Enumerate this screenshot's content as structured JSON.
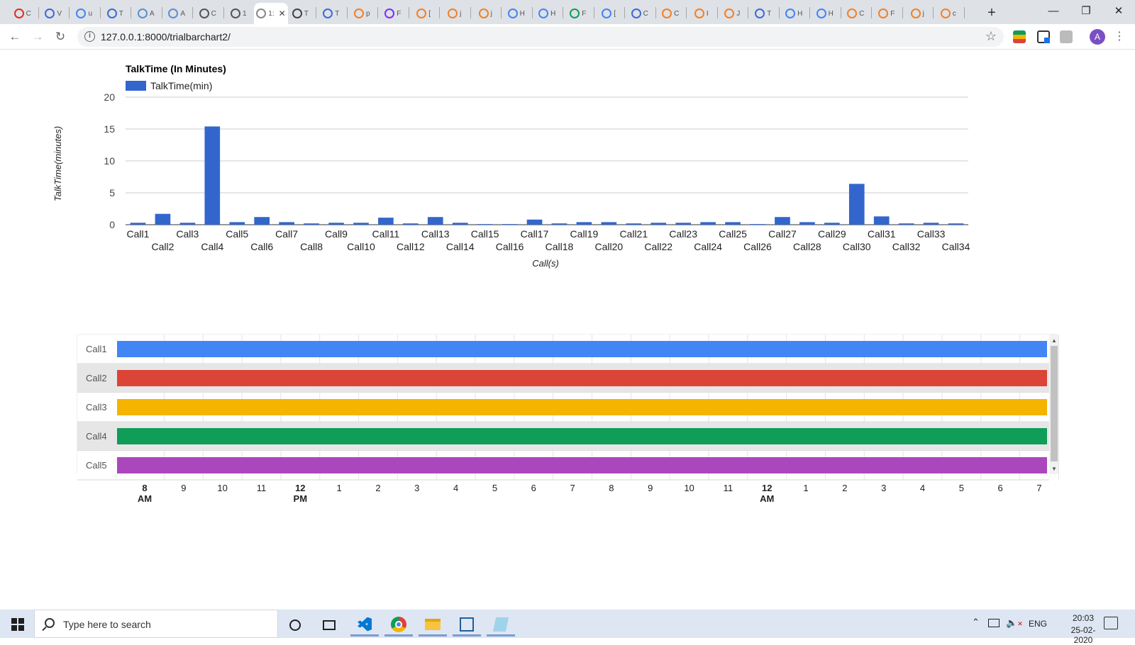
{
  "browser": {
    "tabs": [
      {
        "icon": "gmail-icon",
        "label": "C",
        "color": "#d93025"
      },
      {
        "icon": "code-icon",
        "label": "V",
        "color": "#3b6bd6"
      },
      {
        "icon": "google-icon",
        "label": "u",
        "color": "#4285f4"
      },
      {
        "icon": "code-icon",
        "label": "T",
        "color": "#3b6bd6"
      },
      {
        "icon": "cloud-icon",
        "label": "A",
        "color": "#5a8fd6"
      },
      {
        "icon": "cloud-icon",
        "label": "A",
        "color": "#5a8fd6"
      },
      {
        "icon": "globe-icon",
        "label": "C",
        "color": "#555555"
      },
      {
        "icon": "globe-icon",
        "label": "1",
        "color": "#555555"
      },
      {
        "icon": "page-icon",
        "label": "1:",
        "color": "#888888",
        "active": true
      },
      {
        "icon": "owl-icon",
        "label": "T",
        "color": "#444444"
      },
      {
        "icon": "code-icon",
        "label": "T",
        "color": "#3b6bd6"
      },
      {
        "icon": "stackoverflow-icon",
        "label": "p",
        "color": "#f48024"
      },
      {
        "icon": "flag-icon",
        "label": "F",
        "color": "#7b2ff7"
      },
      {
        "icon": "stackoverflow-icon",
        "label": "[",
        "color": "#f48024"
      },
      {
        "icon": "stackoverflow-icon",
        "label": "j",
        "color": "#f48024"
      },
      {
        "icon": "stackoverflow-icon",
        "label": "j",
        "color": "#f48024"
      },
      {
        "icon": "google-icon",
        "label": "H",
        "color": "#4285f4"
      },
      {
        "icon": "google-icon",
        "label": "H",
        "color": "#4285f4"
      },
      {
        "icon": "gg-icon",
        "label": "F",
        "color": "#0f9d58"
      },
      {
        "icon": "google-icon",
        "label": "[",
        "color": "#4285f4"
      },
      {
        "icon": "code-icon",
        "label": "C",
        "color": "#3b6bd6"
      },
      {
        "icon": "stackoverflow-icon",
        "label": "C",
        "color": "#f48024"
      },
      {
        "icon": "stackoverflow-icon",
        "label": "I",
        "color": "#f48024"
      },
      {
        "icon": "stackoverflow-icon",
        "label": "J",
        "color": "#f48024"
      },
      {
        "icon": "code-icon",
        "label": "T",
        "color": "#3b6bd6"
      },
      {
        "icon": "google-icon",
        "label": "H",
        "color": "#4285f4"
      },
      {
        "icon": "google-icon",
        "label": "H",
        "color": "#4285f4"
      },
      {
        "icon": "stackoverflow-icon",
        "label": "C",
        "color": "#f48024"
      },
      {
        "icon": "stackoverflow-icon",
        "label": "F",
        "color": "#f48024"
      },
      {
        "icon": "stackoverflow-icon",
        "label": "j",
        "color": "#f48024"
      },
      {
        "icon": "stackoverflow-icon",
        "label": "c",
        "color": "#f48024"
      }
    ],
    "new_tab_label": "+",
    "url": "127.0.0.1:8000/trialbarchart2/",
    "avatar_letter": "A"
  },
  "chart_data": [
    {
      "type": "bar",
      "title": "TalkTime (In Minutes)",
      "xlabel": "Call(s)",
      "ylabel": "TalkTime(minutes)",
      "ylim": [
        0,
        20
      ],
      "yticks": [
        0,
        5,
        10,
        15,
        20
      ],
      "legend_position": "top-left",
      "grid": true,
      "categories": [
        "Call1",
        "Call2",
        "Call3",
        "Call4",
        "Call5",
        "Call6",
        "Call7",
        "Call8",
        "Call9",
        "Call10",
        "Call11",
        "Call12",
        "Call13",
        "Call14",
        "Call15",
        "Call16",
        "Call17",
        "Call18",
        "Call19",
        "Call20",
        "Call21",
        "Call22",
        "Call23",
        "Call24",
        "Call25",
        "Call26",
        "Call27",
        "Call28",
        "Call29",
        "Call30",
        "Call31",
        "Call32",
        "Call33",
        "Call34"
      ],
      "series": [
        {
          "name": "TalkTime(min)",
          "color": "#3366cc",
          "values": [
            0.3,
            1.7,
            0.3,
            15.4,
            0.4,
            1.2,
            0.4,
            0.2,
            0.3,
            0.3,
            1.1,
            0.2,
            1.2,
            0.3,
            0.1,
            0.1,
            0.8,
            0.2,
            0.4,
            0.4,
            0.2,
            0.3,
            0.3,
            0.4,
            0.4,
            0.1,
            1.2,
            0.4,
            0.3,
            6.4,
            1.3,
            0.2,
            0.3,
            0.2
          ]
        }
      ]
    },
    {
      "type": "timeline",
      "rows": [
        {
          "label": "Call1",
          "color": "#4285f4"
        },
        {
          "label": "Call2",
          "color": "#db4437"
        },
        {
          "label": "Call3",
          "color": "#f4b400"
        },
        {
          "label": "Call4",
          "color": "#0f9d58"
        },
        {
          "label": "Call5",
          "color": "#ab47bc"
        }
      ],
      "xticks": [
        {
          "label": "8",
          "sub": "AM"
        },
        {
          "label": "9"
        },
        {
          "label": "10"
        },
        {
          "label": "11"
        },
        {
          "label": "12",
          "sub": "PM"
        },
        {
          "label": "1"
        },
        {
          "label": "2"
        },
        {
          "label": "3"
        },
        {
          "label": "4"
        },
        {
          "label": "5"
        },
        {
          "label": "6"
        },
        {
          "label": "7"
        },
        {
          "label": "8"
        },
        {
          "label": "9"
        },
        {
          "label": "10"
        },
        {
          "label": "11"
        },
        {
          "label": "12",
          "sub": "AM"
        },
        {
          "label": "1"
        },
        {
          "label": "2"
        },
        {
          "label": "3"
        },
        {
          "label": "4"
        },
        {
          "label": "5"
        },
        {
          "label": "6"
        },
        {
          "label": "7"
        }
      ]
    }
  ],
  "taskbar": {
    "search_placeholder": "Type here to search",
    "language": "ENG",
    "time": "20:03",
    "date": "25-02-2020"
  }
}
